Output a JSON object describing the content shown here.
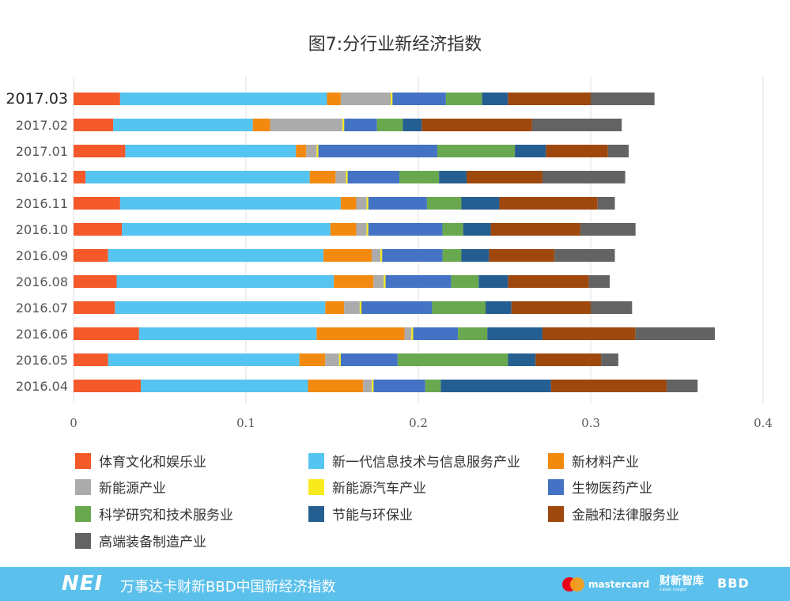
{
  "title": "图7:分行业新经济指数",
  "chart_data": {
    "type": "bar",
    "orientation": "horizontal",
    "stacked": true,
    "categories": [
      "2017.03",
      "2017.02",
      "2017.01",
      "2016.12",
      "2016.11",
      "2016.10",
      "2016.09",
      "2016.08",
      "2016.07",
      "2016.06",
      "2016.05",
      "2016.04"
    ],
    "highlight_category": "2017.03",
    "xlim": [
      0,
      0.4
    ],
    "xticks": [
      "0",
      "0.1",
      "0.2",
      "0.3",
      "0.4"
    ],
    "grid": "vertical",
    "legend_position": "bottom",
    "series": [
      {
        "name": "体育文化和娱乐业",
        "color": "#f4592a",
        "values": [
          0.027,
          0.023,
          0.03,
          0.007,
          0.027,
          0.028,
          0.02,
          0.025,
          0.024,
          0.038,
          0.02,
          0.039
        ]
      },
      {
        "name": "新一代信息技术与信息服务产业",
        "color": "#56c4f1",
        "values": [
          0.12,
          0.081,
          0.099,
          0.13,
          0.128,
          0.121,
          0.125,
          0.126,
          0.122,
          0.103,
          0.111,
          0.097
        ]
      },
      {
        "name": "新材料产业",
        "color": "#f38a10",
        "values": [
          0.008,
          0.01,
          0.006,
          0.015,
          0.009,
          0.015,
          0.028,
          0.023,
          0.011,
          0.051,
          0.015,
          0.032
        ]
      },
      {
        "name": "新能源产业",
        "color": "#ababab",
        "values": [
          0.029,
          0.042,
          0.006,
          0.006,
          0.006,
          0.006,
          0.005,
          0.006,
          0.009,
          0.004,
          0.008,
          0.005
        ]
      },
      {
        "name": "新能源汽车产业",
        "color": "#f7ea1d",
        "values": [
          0.001,
          0.001,
          0.001,
          0.001,
          0.001,
          0.001,
          0.001,
          0.001,
          0.001,
          0.001,
          0.001,
          0.001
        ]
      },
      {
        "name": "生物医药产业",
        "color": "#4472c4",
        "values": [
          0.031,
          0.019,
          0.069,
          0.03,
          0.034,
          0.043,
          0.035,
          0.038,
          0.041,
          0.026,
          0.033,
          0.03
        ]
      },
      {
        "name": "科学研究和技术服务业",
        "color": "#6aa84f",
        "values": [
          0.021,
          0.015,
          0.045,
          0.023,
          0.02,
          0.012,
          0.011,
          0.016,
          0.031,
          0.017,
          0.064,
          0.009
        ]
      },
      {
        "name": "节能与环保业",
        "color": "#255e91",
        "values": [
          0.015,
          0.011,
          0.018,
          0.016,
          0.022,
          0.016,
          0.016,
          0.017,
          0.015,
          0.032,
          0.016,
          0.064
        ]
      },
      {
        "name": "金融和法律服务业",
        "color": "#9e480e",
        "values": [
          0.048,
          0.064,
          0.036,
          0.044,
          0.057,
          0.052,
          0.038,
          0.047,
          0.046,
          0.054,
          0.038,
          0.067
        ]
      },
      {
        "name": "高端装备制造产业",
        "color": "#636363",
        "values": [
          0.037,
          0.052,
          0.012,
          0.048,
          0.01,
          0.032,
          0.035,
          0.012,
          0.024,
          0.046,
          0.01,
          0.018
        ]
      }
    ]
  },
  "footer": {
    "logo": "NEI",
    "text": "万事达卡财新BBD中国新经济指数",
    "mastercard": "mastercard",
    "caixin": "财新智库",
    "caixin_sub": "Caixin Insight",
    "bbd": "BBD"
  }
}
